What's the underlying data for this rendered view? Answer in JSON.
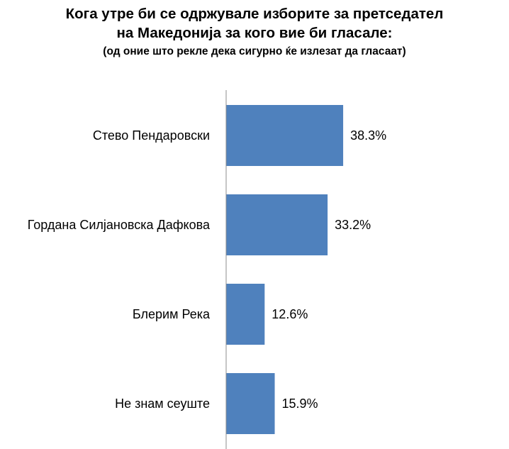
{
  "chart_data": {
    "type": "bar",
    "orientation": "horizontal",
    "title_lines": [
      "Кога утре би се одржувале изборите за претседател",
      "на Македонија за кого вие би гласале:"
    ],
    "subtitle": "(од оние што рекле дека сигурно ќе излезат да  гласаат)",
    "categories": [
      "Стево Пендаровски",
      "Гордана Силјановска Дафкова",
      "Блерим Река",
      "Не знам сеуште"
    ],
    "values": [
      38.3,
      33.2,
      12.6,
      15.9
    ],
    "value_labels": [
      "38.3%",
      "33.2%",
      "12.6%",
      "15.9%"
    ],
    "xlim": [
      0,
      100
    ],
    "grid": false,
    "legend": "none",
    "bar_color": "#4f81bd",
    "axis_color": "#8c8c8c"
  }
}
